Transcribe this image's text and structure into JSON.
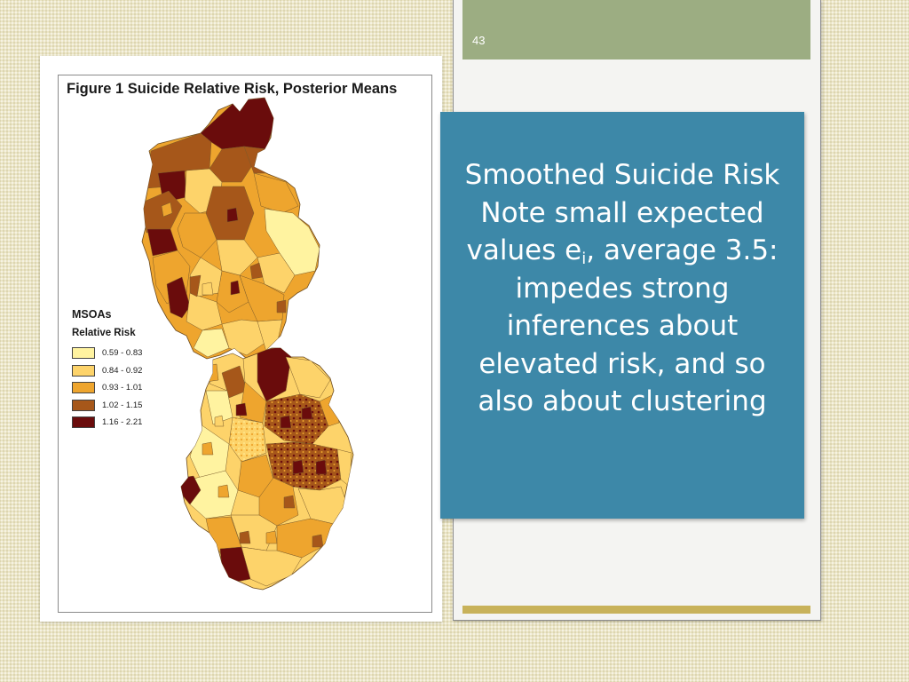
{
  "slide": {
    "number": "43"
  },
  "figure": {
    "title": "Figure 1 Suicide Relative Risk, Posterior Means",
    "legend": {
      "title": "MSOAs",
      "subtitle": "Relative Risk",
      "classes": [
        {
          "label": "0.59 - 0.83",
          "color": "#fff3a0"
        },
        {
          "label": "0.84 - 0.92",
          "color": "#fdd36a"
        },
        {
          "label": "0.93 - 1.01",
          "color": "#eea52e"
        },
        {
          "label": "1.02 - 1.15",
          "color": "#a6571a"
        },
        {
          "label": "1.16 - 2.21",
          "color": "#6a0c0c"
        }
      ]
    }
  },
  "textbox": {
    "line1": "Smoothed Suicide Risk",
    "line2": "Note small expected",
    "line3_pre": "values e",
    "line3_sub": "i",
    "line3_post": ", average 3.5:",
    "line4": "impedes strong",
    "line5": "inferences about",
    "line6": "elevated risk, and so",
    "line7": "also about clustering"
  },
  "colors": {
    "accent_green": "#9cad82",
    "accent_gold": "#c8b25a",
    "textbox_blue": "#3d88a8"
  }
}
